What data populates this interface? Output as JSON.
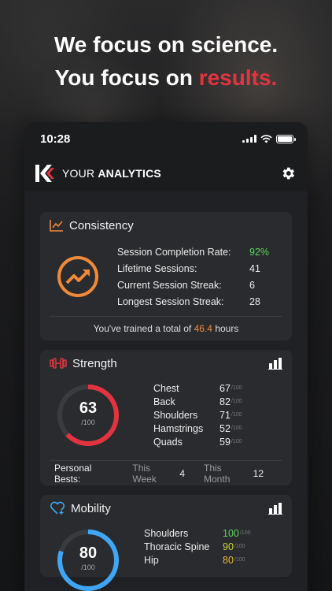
{
  "headline": {
    "line1": "We focus on science.",
    "line2_prefix": "You focus on ",
    "line2_accent": "results."
  },
  "status_bar": {
    "time": "10:28"
  },
  "app_bar": {
    "title_prefix": "YOUR",
    "title_bold": "ANALYTICS"
  },
  "consistency": {
    "title": "Consistency",
    "stats": [
      {
        "label": "Session Completion Rate:",
        "value": "92%"
      },
      {
        "label": "Lifetime Sessions:",
        "value": "41"
      },
      {
        "label": "Current Session Streak:",
        "value": "6"
      },
      {
        "label": "Longest Session Streak:",
        "value": "28"
      }
    ],
    "footer_prefix": "You've trained a total of ",
    "footer_value": "46.4",
    "footer_suffix": " hours"
  },
  "strength": {
    "title": "Strength",
    "score": "63",
    "score_max": "/100",
    "score_fraction": 0.63,
    "muscles": [
      {
        "label": "Chest",
        "value": "67",
        "max": "/100"
      },
      {
        "label": "Back",
        "value": "82",
        "max": "/100"
      },
      {
        "label": "Shoulders",
        "value": "71",
        "max": "/100"
      },
      {
        "label": "Hamstrings",
        "value": "52",
        "max": "/100"
      },
      {
        "label": "Quads",
        "value": "59",
        "max": "/100"
      }
    ],
    "personal_bests": {
      "label": "Personal Bests:",
      "week_label": "This Week",
      "week_value": "4",
      "month_label": "This Month",
      "month_value": "12"
    }
  },
  "mobility": {
    "title": "Mobility",
    "score": "80",
    "score_max": "/100",
    "score_fraction": 0.8,
    "muscles": [
      {
        "label": "Shoulders",
        "value": "100",
        "max": "/100"
      },
      {
        "label": "Thoracic Spine",
        "value": "90",
        "max": "/100"
      },
      {
        "label": "Hip",
        "value": "80",
        "max": "/100"
      }
    ]
  },
  "colors": {
    "accent_red": "#e2343f",
    "orange": "#f08a3a",
    "green": "#5dd55d",
    "blue": "#3ea6f5",
    "yellow": "#e9b53c"
  }
}
